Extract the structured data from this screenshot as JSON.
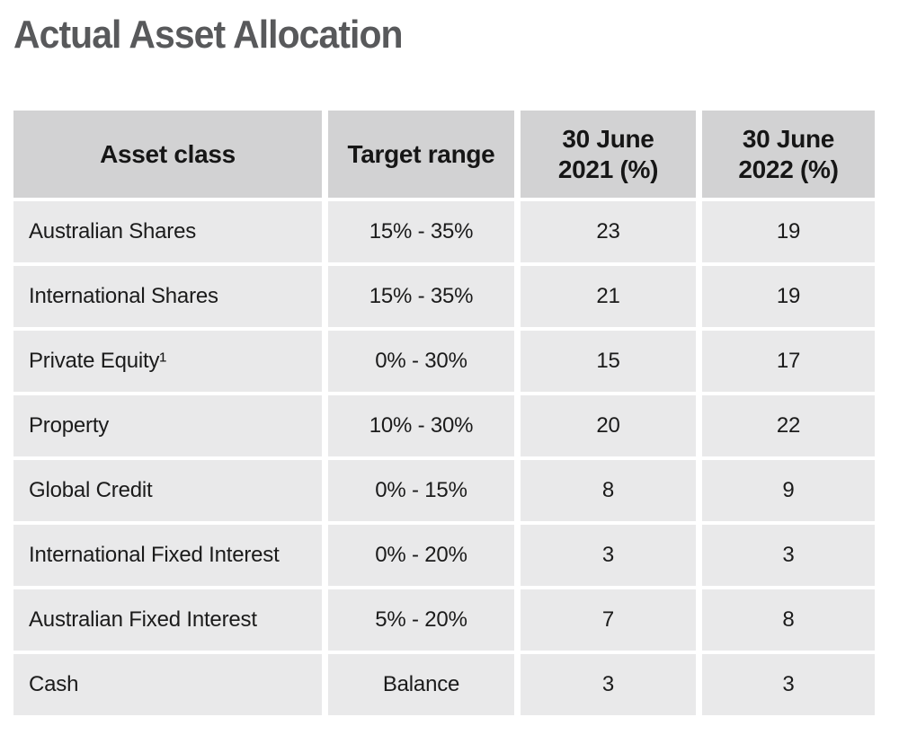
{
  "page": {
    "title": "Actual Asset Allocation"
  },
  "colors": {
    "title_text": "#58595b",
    "header_cell_bg": "#d2d2d3",
    "body_cell_bg": "#e9e9ea",
    "cell_text": "#1b1b1b",
    "gap": "#ffffff"
  },
  "table": {
    "columns": [
      {
        "label": "Asset class"
      },
      {
        "label": "Target range"
      },
      {
        "label": "30 June 2021 (%)"
      },
      {
        "label": "30 June 2022 (%)"
      }
    ],
    "rows": [
      {
        "asset_class": "Australian Shares",
        "target_range": "15% - 35%",
        "jun_2021": "23",
        "jun_2022": "19"
      },
      {
        "asset_class": "International Shares",
        "target_range": "15% - 35%",
        "jun_2021": "21",
        "jun_2022": "19"
      },
      {
        "asset_class": "Private Equity¹",
        "target_range": "0% - 30%",
        "jun_2021": "15",
        "jun_2022": "17"
      },
      {
        "asset_class": "Property",
        "target_range": "10% - 30%",
        "jun_2021": "20",
        "jun_2022": "22"
      },
      {
        "asset_class": "Global Credit",
        "target_range": "0% - 15%",
        "jun_2021": "8",
        "jun_2022": "9"
      },
      {
        "asset_class": "International Fixed Interest",
        "target_range": "0% - 20%",
        "jun_2021": "3",
        "jun_2022": "3"
      },
      {
        "asset_class": "Australian Fixed Interest",
        "target_range": "5% - 20%",
        "jun_2021": "7",
        "jun_2022": "8"
      },
      {
        "asset_class": "Cash",
        "target_range": "Balance",
        "jun_2021": "3",
        "jun_2022": "3"
      }
    ]
  }
}
